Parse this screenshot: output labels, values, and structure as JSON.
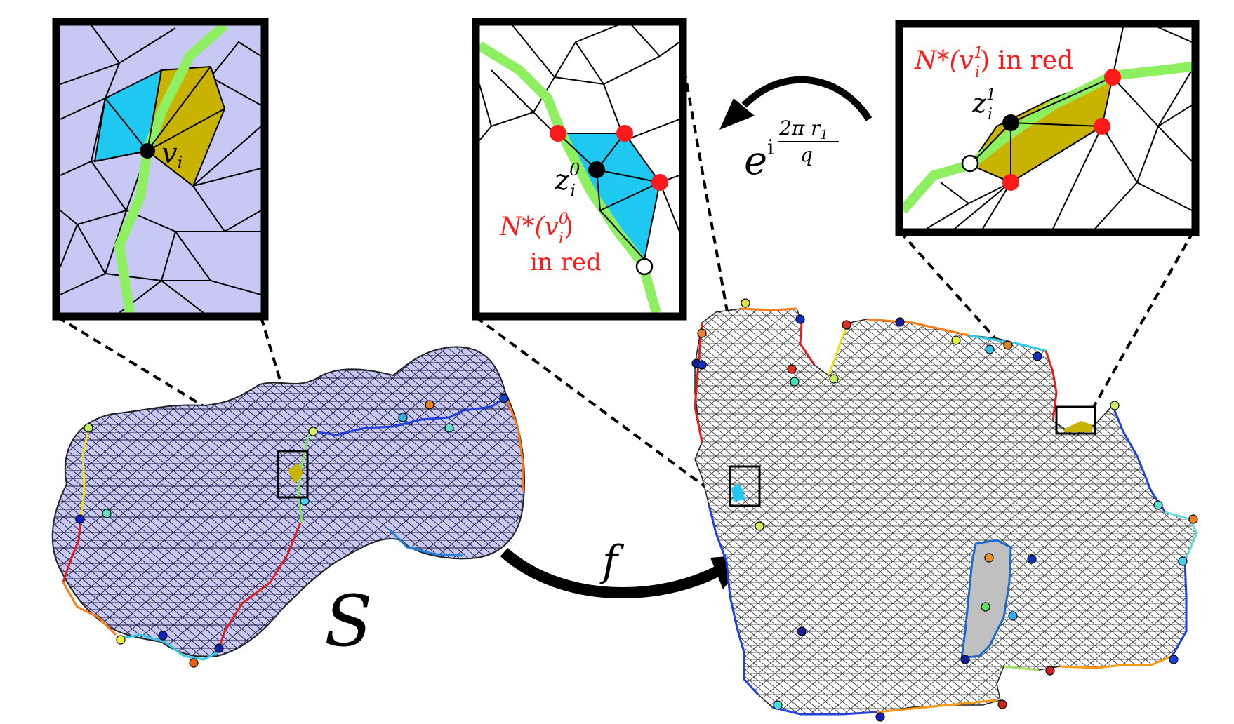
{
  "labels": {
    "surface": "S",
    "map": "f",
    "inset1_vertex": "v",
    "inset1_vertex_sub": "i",
    "inset2_vertex": "z",
    "inset2_vertex_sub": "i",
    "inset2_vertex_sup": "0",
    "inset2_caption_1": "N*(v",
    "inset2_caption_sub": "i",
    "inset2_caption_sup": "0",
    "inset2_caption_close": ")",
    "inset2_caption_2": "in red",
    "inset3_vertex": "z",
    "inset3_vertex_sub": "i",
    "inset3_vertex_sup": "1",
    "inset3_caption_1": "N*(v",
    "inset3_caption_sub": "i",
    "inset3_caption_sup": "1",
    "inset3_caption_close": ") in red",
    "rotation_base": "e",
    "rotation_i": "i",
    "rotation_num": "2π r",
    "rotation_num_sub": "1",
    "rotation_den": "q"
  },
  "colors": {
    "mesh_fill": "#c8c8f5",
    "flat_fill": "#ffffff",
    "cyan_region": "#1ec8f0",
    "olive_region": "#c8b400",
    "cut_path": "#8ef060",
    "neighbor_red": "#ff1a1a",
    "frame": "#000000"
  }
}
